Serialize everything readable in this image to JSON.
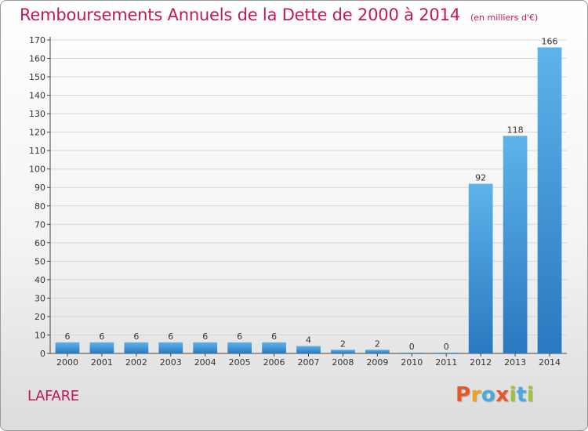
{
  "chart_data": {
    "type": "bar",
    "title": "Remboursements Annuels de la Dette de 2000 à 2014",
    "unit": "(en milliers d'€)",
    "categories": [
      "2000",
      "2001",
      "2002",
      "2003",
      "2004",
      "2005",
      "2006",
      "2007",
      "2008",
      "2009",
      "2010",
      "2011",
      "2012",
      "2013",
      "2014"
    ],
    "values": [
      6,
      6,
      6,
      6,
      6,
      6,
      6,
      4,
      2,
      2,
      0,
      0,
      92,
      118,
      166
    ],
    "ylim": [
      0,
      170
    ],
    "yticks": [
      0,
      10,
      20,
      30,
      40,
      50,
      60,
      70,
      80,
      90,
      100,
      110,
      120,
      130,
      140,
      150,
      160,
      170
    ],
    "grid": true,
    "bar_color": "#3a8fd8"
  },
  "footer": {
    "commune": "LAFARE",
    "logo_letters": [
      "P",
      "r",
      "o",
      "x",
      "i",
      "t",
      "i"
    ],
    "logo_colors": [
      "#e8572a",
      "#f2a31b",
      "#4aa8e0",
      "#e8572a",
      "#9bc43a",
      "#4aa8e0",
      "#9bc43a"
    ]
  }
}
